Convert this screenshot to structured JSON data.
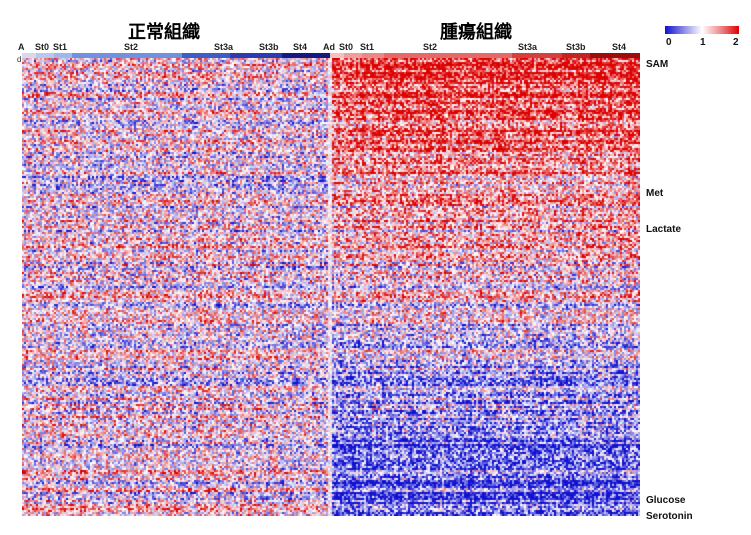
{
  "groups": {
    "normal": {
      "title": "正常組織",
      "color": "#1a1aa0"
    },
    "tumor": {
      "title": "腫瘍組織",
      "color": "#c40000"
    }
  },
  "stages": {
    "normal": [
      "A",
      "St0",
      "St1",
      "St2",
      "St3a",
      "St3b",
      "St4"
    ],
    "tumor": [
      "Ad",
      "St0",
      "St1",
      "St2",
      "St3a",
      "St3b",
      "St4"
    ]
  },
  "row_labels": {
    "sam": "SAM",
    "met": "Met",
    "lactate": "Lactate",
    "glucose": "Glucose",
    "serotonin": "Serotonin"
  },
  "corner_mark": "d",
  "colors": {
    "low": "#1010d0",
    "mid": "#ffffff",
    "high": "#dd0000"
  },
  "chart_data": {
    "type": "heatmap",
    "title": "",
    "columns": [
      "正常組織",
      "腫瘍組織"
    ],
    "row_annotations": [
      "SAM",
      "Met",
      "Lactate",
      "Glucose",
      "Serotonin"
    ],
    "color_scale": {
      "min": 0,
      "mid": 1,
      "max": 2,
      "ticks": [
        "0",
        "1",
        "2"
      ]
    },
    "summary": {
      "正常組織": "mixed blue/white/red, mean ≈ 1",
      "腫瘍組織": "upper rows mostly red (≈1.5–2), lower rows mostly blue (≈0–0.5)"
    }
  }
}
